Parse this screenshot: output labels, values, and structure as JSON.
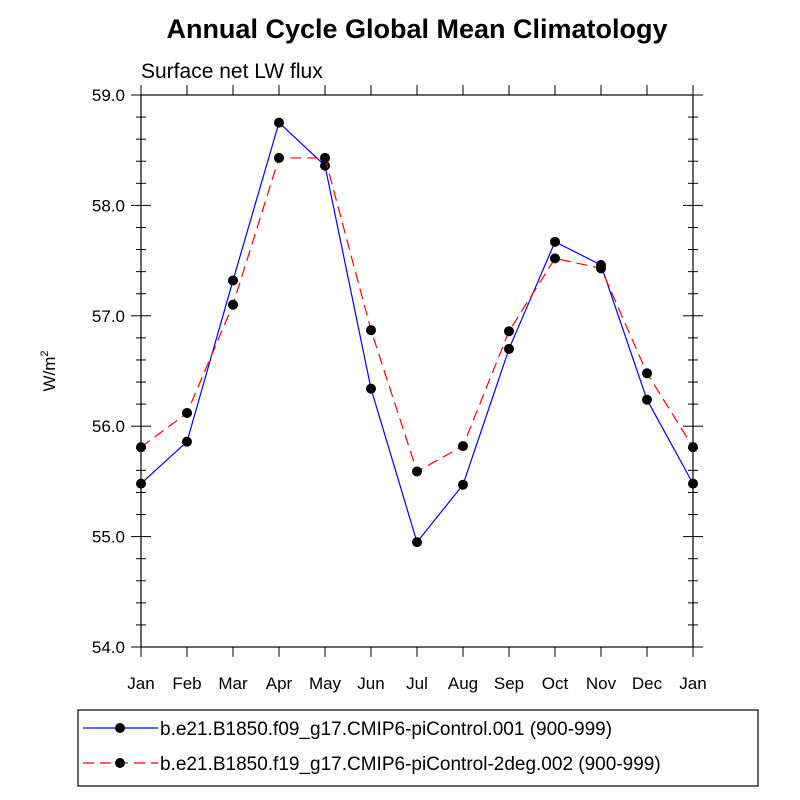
{
  "chart_data": {
    "type": "line",
    "title": "Annual Cycle Global Mean Climatology",
    "subtitle": "Surface net LW flux",
    "ylabel": {
      "base": "W/m",
      "sup": "2"
    },
    "xlabel": "",
    "categories": [
      "Jan",
      "Feb",
      "Mar",
      "Apr",
      "May",
      "Jun",
      "Jul",
      "Aug",
      "Sep",
      "Oct",
      "Nov",
      "Dec",
      "Jan"
    ],
    "ylim": [
      54.0,
      59.0
    ],
    "yticks": [
      "54.0",
      "55.0",
      "56.0",
      "57.0",
      "58.0",
      "59.0"
    ],
    "grid": false,
    "legend_position": "bottom",
    "series": [
      {
        "name": "b.e21.B1850.f09_g17.CMIP6-piControl.001 (900-999)",
        "color": "#0000ff",
        "dash": "solid",
        "values": [
          55.48,
          55.86,
          57.32,
          58.75,
          58.36,
          56.34,
          54.95,
          55.47,
          56.7,
          57.67,
          57.46,
          56.24,
          55.48
        ]
      },
      {
        "name": "b.e21.B1850.f19_g17.CMIP6-piControl-2deg.002 (900-999)",
        "color": "#ff0000",
        "dash": "dashed",
        "values": [
          55.81,
          56.12,
          57.1,
          58.43,
          58.43,
          56.87,
          55.59,
          55.82,
          56.86,
          57.52,
          57.43,
          56.48,
          55.81
        ]
      }
    ]
  }
}
